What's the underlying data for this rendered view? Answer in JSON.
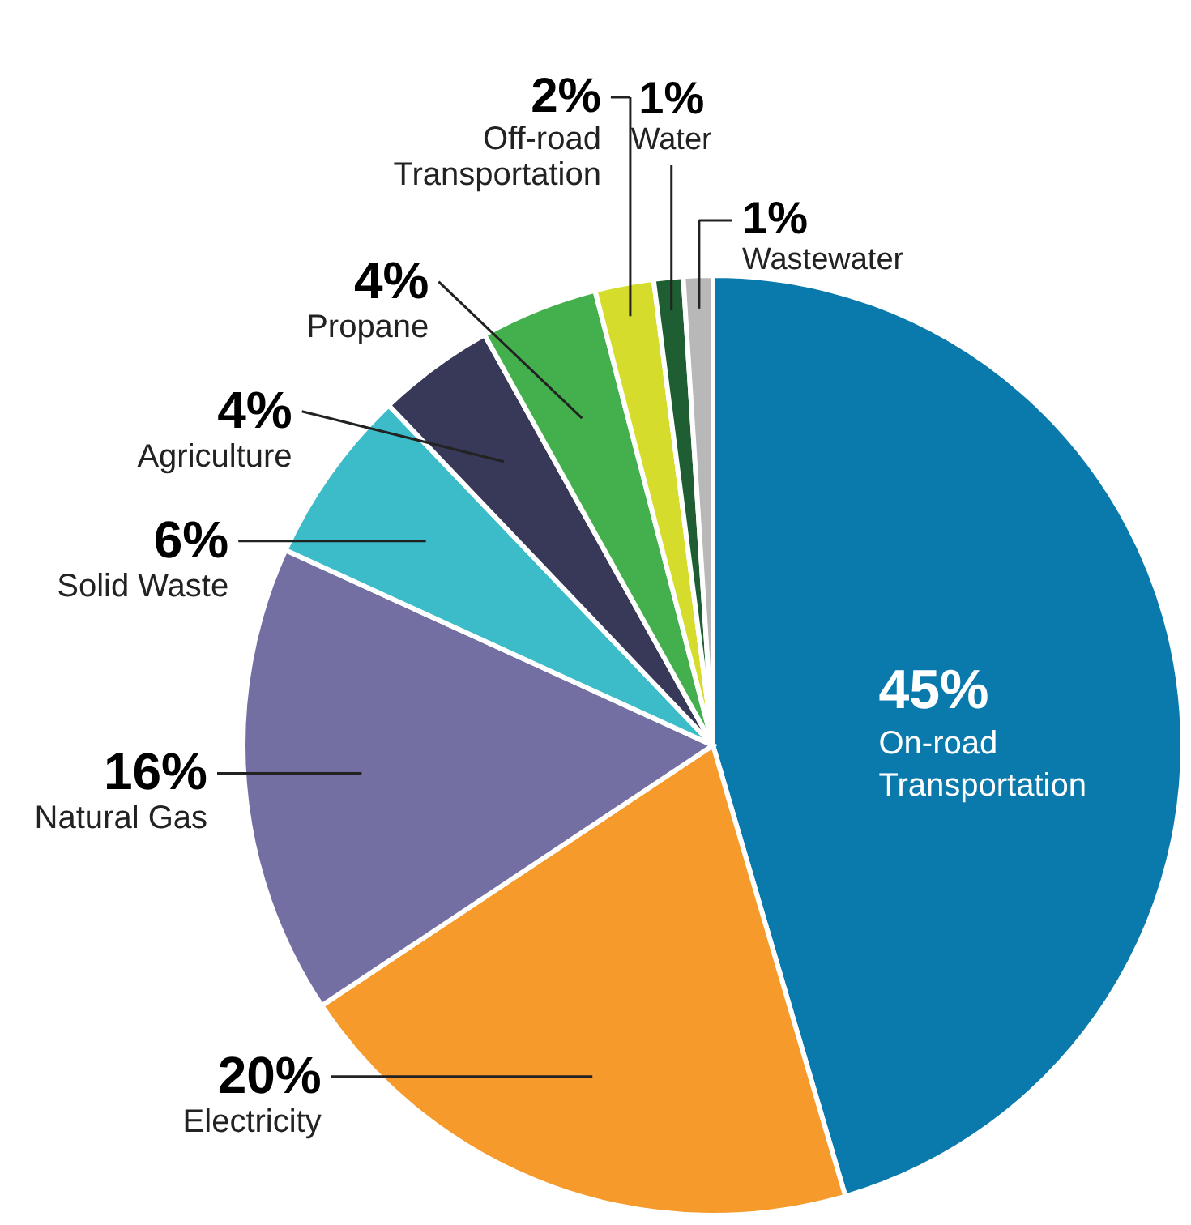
{
  "chart_data": {
    "type": "pie",
    "categories": [
      "On-road Transportation",
      "Electricity",
      "Natural Gas",
      "Solid Waste",
      "Agriculture",
      "Propane",
      "Off-road Transportation",
      "Water",
      "Wastewater"
    ],
    "values": [
      45,
      20,
      16,
      6,
      4,
      4,
      2,
      1,
      1
    ],
    "colors": [
      "#0a7aad",
      "#f59a2b",
      "#736fa3",
      "#3bbcc8",
      "#383859",
      "#44b04d",
      "#d5dc2b",
      "#1e5e32",
      "#b8b8b8"
    ],
    "value_labels": [
      "45%",
      "20%",
      "16%",
      "6%",
      "4%",
      "4%",
      "2%",
      "1%",
      "1%"
    ]
  }
}
